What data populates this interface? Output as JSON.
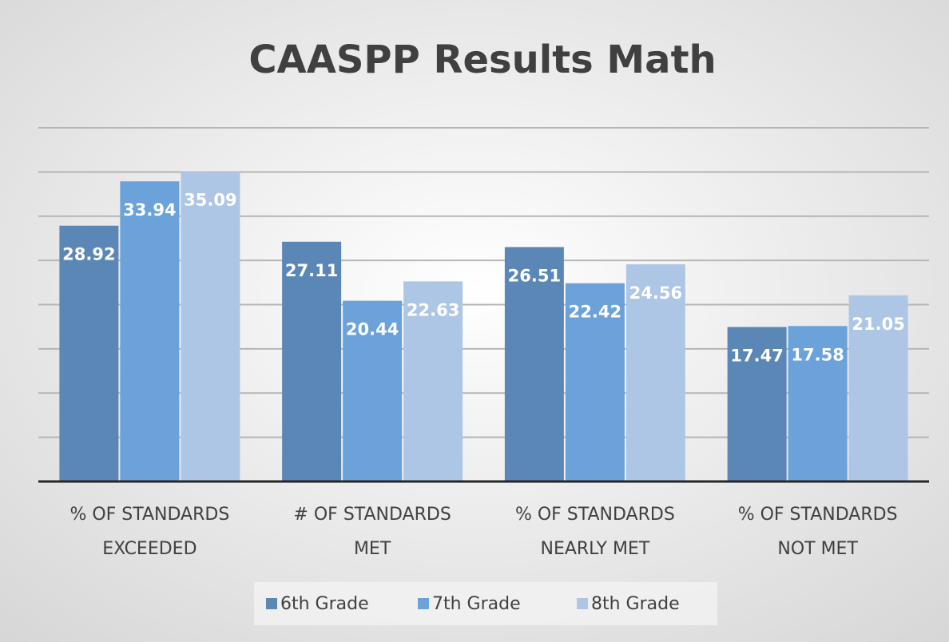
{
  "chart_data": {
    "type": "bar",
    "title": "CAASPP Results Math",
    "categories": [
      "% OF STANDARDS\nEXCEEDED",
      "# OF STANDARDS\nMET",
      "% OF STANDARDS\nNEARLY MET",
      "% OF STANDARDS\nNOT MET"
    ],
    "series": [
      {
        "name": "6th Grade",
        "color": "#5b87b6",
        "values": [
          28.92,
          27.11,
          26.51,
          17.47
        ]
      },
      {
        "name": "7th Grade",
        "color": "#6aa2d9",
        "values": [
          33.94,
          20.44,
          22.42,
          17.58
        ]
      },
      {
        "name": "8th Grade",
        "color": "#aec6e6",
        "values": [
          35.09,
          22.63,
          24.56,
          21.05
        ]
      }
    ],
    "ylim": [
      0,
      40
    ],
    "yticks": [
      0,
      5,
      10,
      15,
      20,
      25,
      30,
      35,
      40
    ],
    "grid": true,
    "legend": "bottom"
  }
}
